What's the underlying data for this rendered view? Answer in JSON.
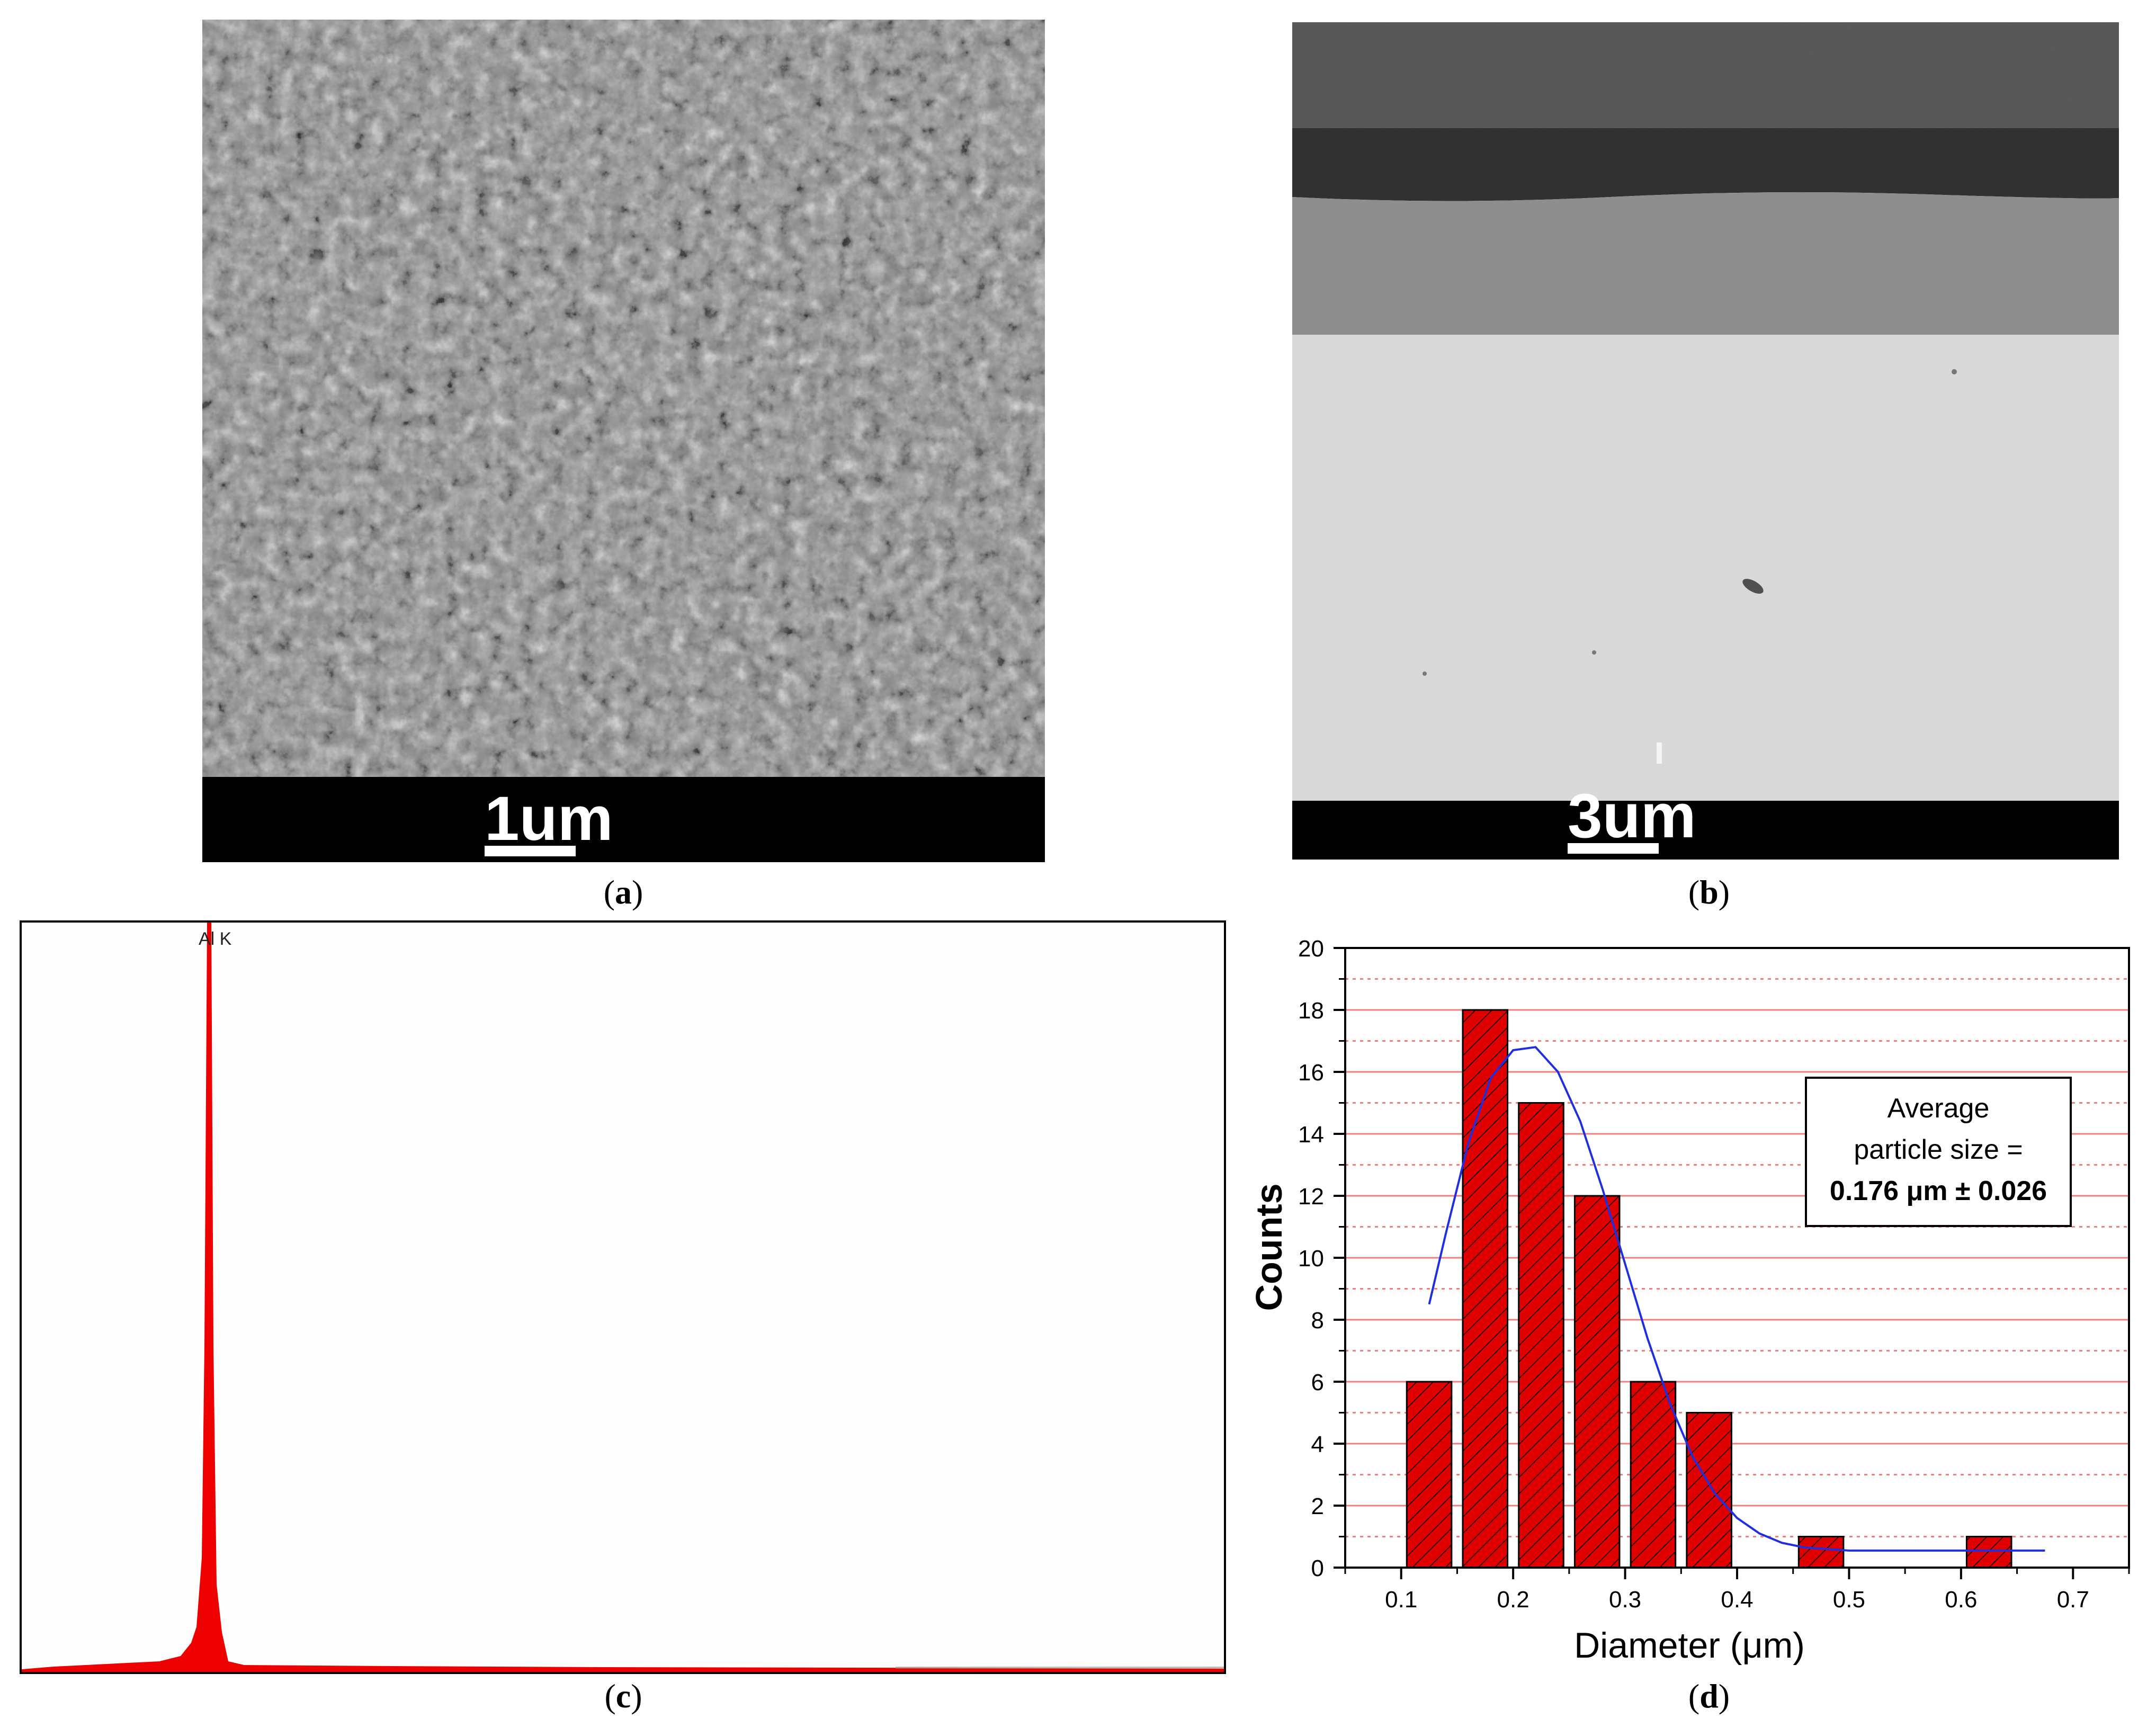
{
  "panels": {
    "a": {
      "caption_label": "a",
      "scale_text": "1um"
    },
    "b": {
      "caption_label": "b",
      "scale_text": "3um"
    },
    "c": {
      "caption_label": "c",
      "peak_label": "Al K"
    },
    "d": {
      "caption_label": "d"
    }
  },
  "colors": {
    "bar_fill": "#e00000",
    "fit_line": "#1f2fe0",
    "spectrum": "#ee0000",
    "grid": "#f08080"
  },
  "chart_data": [
    {
      "type": "bar",
      "panel": "d",
      "xlabel": "Diameter (μm)",
      "ylabel": "Counts",
      "xlim": [
        0.05,
        0.75
      ],
      "ylim": [
        0,
        20
      ],
      "xticks": [
        0.1,
        0.2,
        0.3,
        0.4,
        0.5,
        0.6,
        0.7
      ],
      "yticks": [
        0,
        2,
        4,
        6,
        8,
        10,
        12,
        14,
        16,
        18,
        20
      ],
      "bar_width": 0.04,
      "bars": [
        {
          "x": 0.125,
          "value": 6
        },
        {
          "x": 0.175,
          "value": 18
        },
        {
          "x": 0.225,
          "value": 15
        },
        {
          "x": 0.275,
          "value": 12
        },
        {
          "x": 0.325,
          "value": 6
        },
        {
          "x": 0.375,
          "value": 5
        },
        {
          "x": 0.475,
          "value": 1
        },
        {
          "x": 0.625,
          "value": 1
        }
      ],
      "fit": {
        "x": [
          0.125,
          0.14,
          0.16,
          0.18,
          0.2,
          0.22,
          0.24,
          0.26,
          0.28,
          0.3,
          0.32,
          0.34,
          0.36,
          0.38,
          0.4,
          0.42,
          0.44,
          0.46,
          0.5,
          0.55,
          0.6,
          0.675
        ],
        "y": [
          8.5,
          10.8,
          13.7,
          15.8,
          16.7,
          16.8,
          16.0,
          14.4,
          12.2,
          9.8,
          7.4,
          5.3,
          3.6,
          2.4,
          1.6,
          1.1,
          0.8,
          0.65,
          0.55,
          0.55,
          0.55,
          0.55
        ]
      },
      "grid": true,
      "annotation": {
        "lines": [
          "Average",
          "particle size =",
          "0.176 μm ± 0.026"
        ]
      }
    },
    {
      "type": "area",
      "panel": "c",
      "peaks": [
        {
          "label": "Al K"
        }
      ]
    }
  ]
}
